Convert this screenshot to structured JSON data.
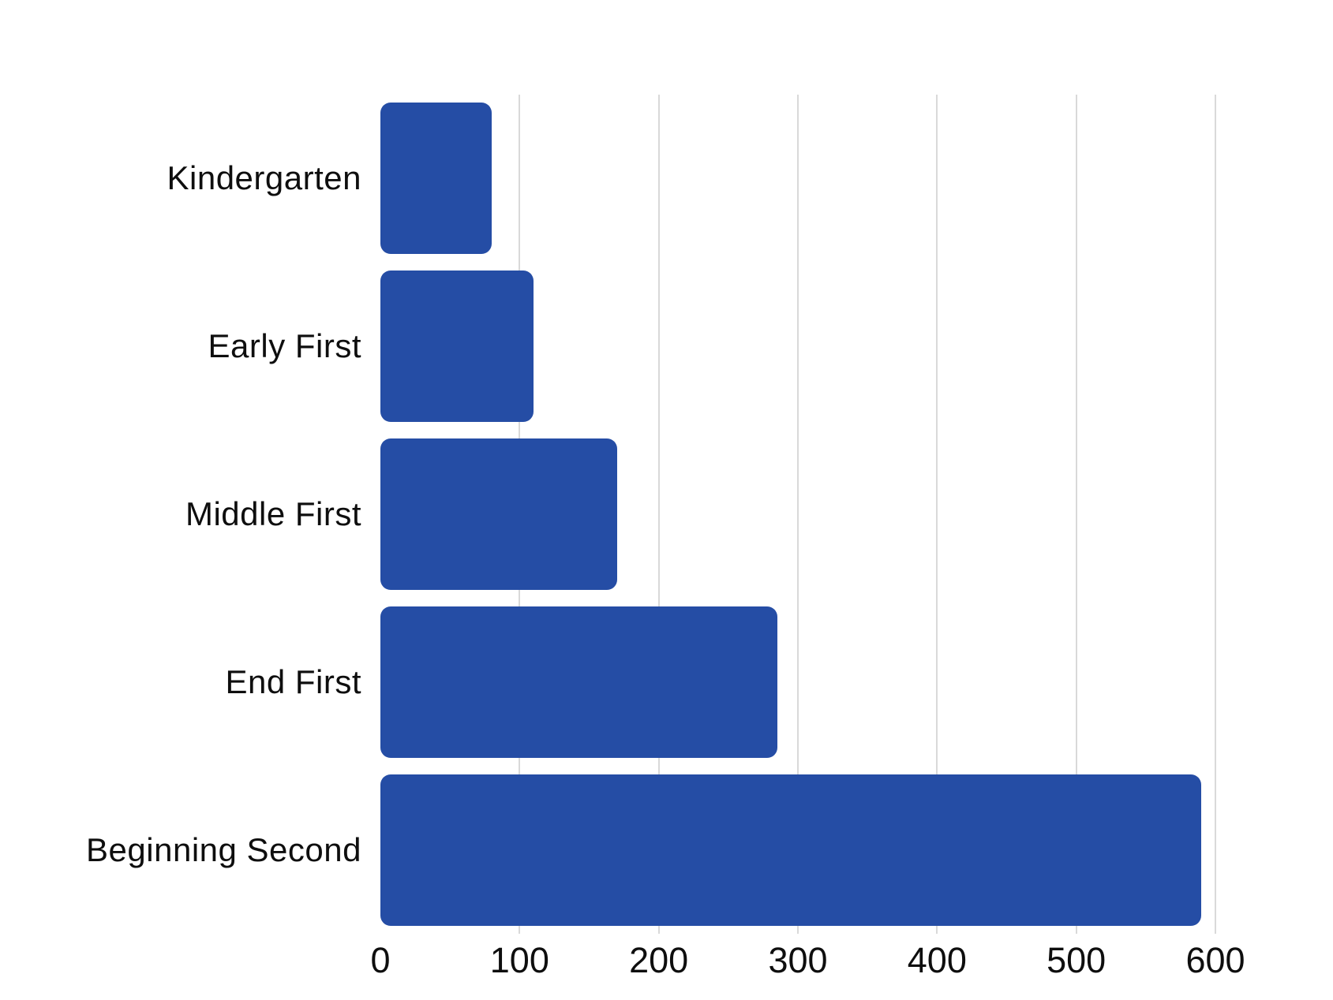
{
  "chart_data": {
    "type": "bar",
    "orientation": "horizontal",
    "title": "",
    "xlabel": "",
    "ylabel": "",
    "categories": [
      "Kindergarten",
      "Early First",
      "Middle First",
      "End First",
      "Beginning Second"
    ],
    "values": [
      80,
      110,
      170,
      285,
      590
    ],
    "xlim": [
      0,
      600
    ],
    "xticks": [
      0,
      100,
      200,
      300,
      400,
      500,
      600
    ],
    "grid": "vertical-only",
    "legend": "none",
    "bar_color": "#254da5",
    "gridline_color": "#d9d9d9",
    "text_color": "#0e0e0e",
    "background_color": "#ffffff"
  }
}
